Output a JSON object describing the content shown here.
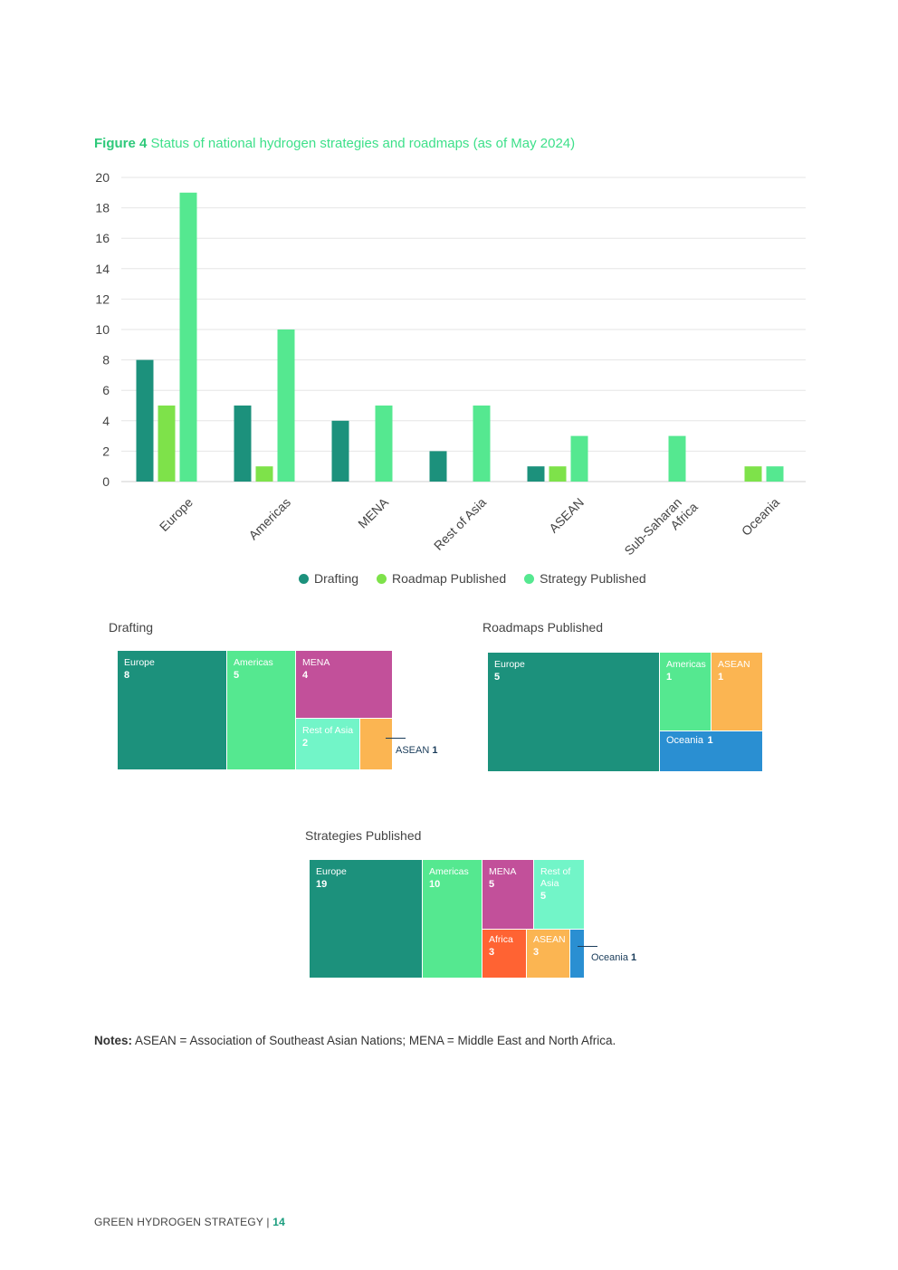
{
  "figure": {
    "label": "Figure 4",
    "title": "Status of national hydrogen strategies and roadmaps (as of May 2024)"
  },
  "colors": {
    "drafting": "#1c917c",
    "roadmap": "#7ee24a",
    "strategy": "#55e890",
    "europe": "#1c917c",
    "americas": "#55e890",
    "mena": "#c2509a",
    "rest_of_asia": "#72f5c8",
    "asean": "#fbb552",
    "oceania": "#2a8fd2",
    "africa": "#ff6333"
  },
  "chart_data": [
    {
      "type": "bar",
      "title": "Status of national hydrogen strategies and roadmaps (as of May 2024)",
      "categories": [
        "Europe",
        "Americas",
        "MENA",
        "Rest of Asia",
        "ASEAN",
        "Sub-Saharan Africa",
        "Oceania"
      ],
      "series": [
        {
          "name": "Drafting",
          "values": [
            8,
            5,
            4,
            2,
            1,
            0,
            0
          ]
        },
        {
          "name": "Roadmap Published",
          "values": [
            5,
            1,
            0,
            0,
            1,
            0,
            1
          ]
        },
        {
          "name": "Strategy Published",
          "values": [
            19,
            10,
            5,
            5,
            3,
            3,
            1
          ]
        }
      ],
      "yticks": [
        0,
        2,
        4,
        6,
        8,
        10,
        12,
        14,
        16,
        18,
        20
      ],
      "ylim": [
        0,
        20
      ],
      "grid": true,
      "legend": "bottom"
    },
    {
      "type": "treemap",
      "title": "Drafting",
      "items": [
        {
          "name": "Europe",
          "value": 8
        },
        {
          "name": "Americas",
          "value": 5
        },
        {
          "name": "MENA",
          "value": 4
        },
        {
          "name": "Rest of Asia",
          "value": 2
        },
        {
          "name": "ASEAN",
          "value": 1
        }
      ]
    },
    {
      "type": "treemap",
      "title": "Roadmaps Published",
      "items": [
        {
          "name": "Europe",
          "value": 5
        },
        {
          "name": "Americas",
          "value": 1
        },
        {
          "name": "ASEAN",
          "value": 1
        },
        {
          "name": "Oceania",
          "value": 1
        }
      ]
    },
    {
      "type": "treemap",
      "title": "Strategies Published",
      "items": [
        {
          "name": "Europe",
          "value": 19
        },
        {
          "name": "Americas",
          "value": 10
        },
        {
          "name": "MENA",
          "value": 5
        },
        {
          "name": "Rest of Asia",
          "value": 5
        },
        {
          "name": "Africa",
          "value": 3
        },
        {
          "name": "ASEAN",
          "value": 3
        },
        {
          "name": "Oceania",
          "value": 1
        }
      ]
    }
  ],
  "bar_labels": {
    "x_ticks": [
      [
        "Europe"
      ],
      [
        "Americas"
      ],
      [
        "MENA"
      ],
      [
        "Rest of Asia"
      ],
      [
        "ASEAN"
      ],
      [
        "Sub-Saharan",
        "Africa"
      ],
      [
        "Oceania"
      ]
    ]
  },
  "legend": {
    "drafting": "Drafting",
    "roadmap": "Roadmap Published",
    "strategy": "Strategy Published"
  },
  "treemaps": {
    "drafting": {
      "title": "Drafting",
      "europe": {
        "name": "Europe",
        "value": "8"
      },
      "americas": {
        "name": "Americas",
        "value": "5"
      },
      "mena": {
        "name": "MENA",
        "value": "4"
      },
      "rest_of_asia": {
        "name": "Rest of Asia",
        "value": "2"
      },
      "asean": {
        "name": "ASEAN",
        "value": "1"
      }
    },
    "roadmaps": {
      "title": "Roadmaps Published",
      "europe": {
        "name": "Europe",
        "value": "5"
      },
      "americas": {
        "name": "Americas",
        "value": "1"
      },
      "asean": {
        "name": "ASEAN",
        "value": "1"
      },
      "oceania": {
        "name": "Oceania",
        "value": "1"
      }
    },
    "strategies": {
      "title": "Strategies Published",
      "europe": {
        "name": "Europe",
        "value": "19"
      },
      "americas": {
        "name": "Americas",
        "value": "10"
      },
      "mena": {
        "name": "MENA",
        "value": "5"
      },
      "rest_of_asia": {
        "name": "Rest of Asia",
        "value": "5"
      },
      "africa": {
        "name": "Africa",
        "value": "3"
      },
      "asean": {
        "name": "ASEAN",
        "value": "3"
      },
      "oceania": {
        "name": "Oceania",
        "value": "1"
      }
    }
  },
  "notes": {
    "label": "Notes:",
    "text": "ASEAN = Association of Southeast Asian Nations; MENA = Middle East and North Africa."
  },
  "footer": {
    "title": "GREEN HYDROGEN STRATEGY",
    "separator": "|",
    "page": "14"
  }
}
